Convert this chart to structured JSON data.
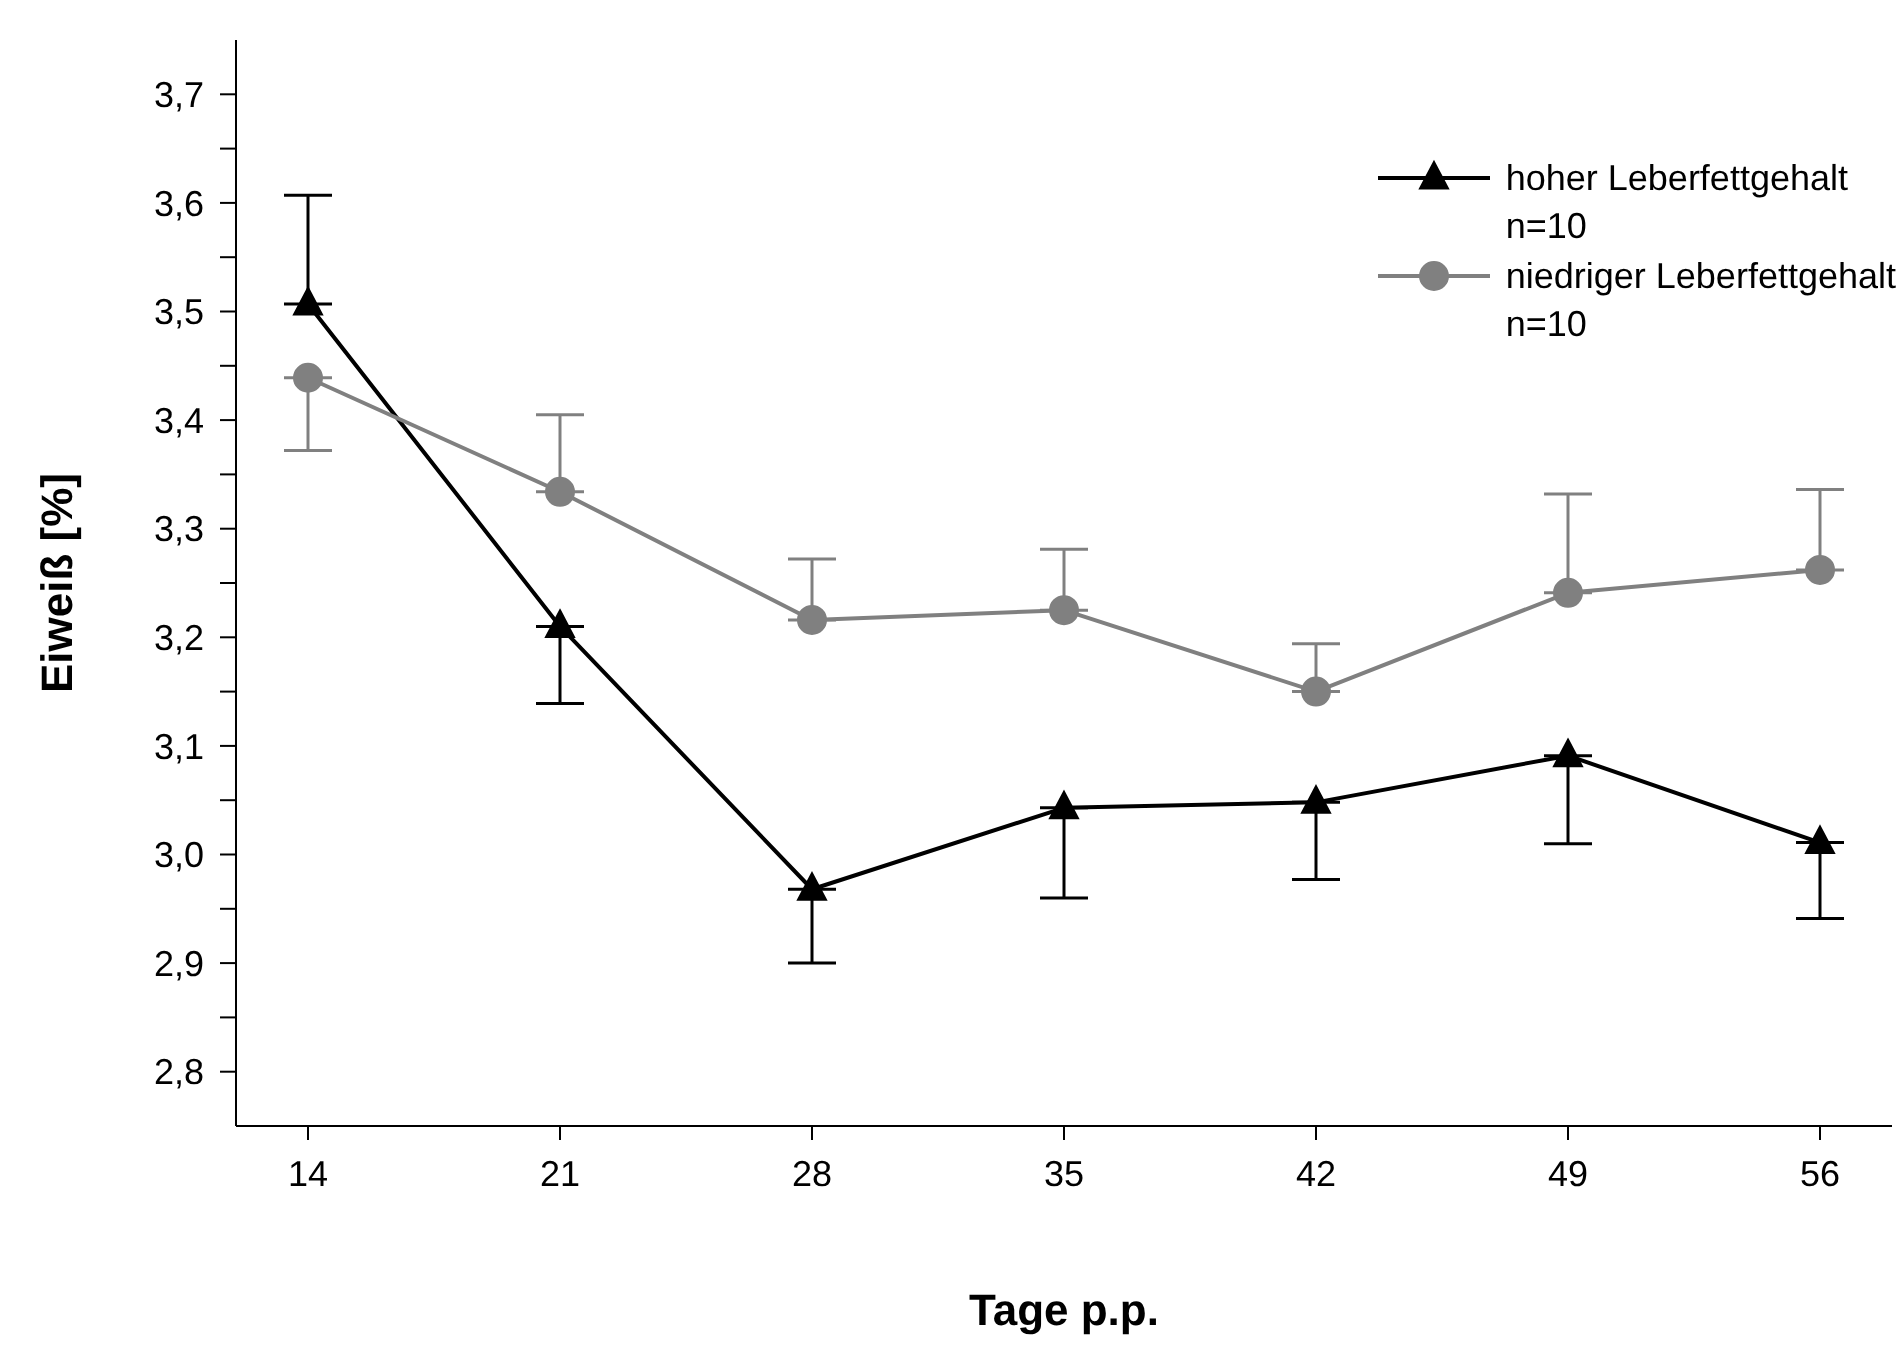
{
  "chart_data": {
    "type": "line",
    "xlabel": "Tage p.p.",
    "ylabel": "Eiweiß [%]",
    "x": [
      14,
      21,
      28,
      35,
      42,
      49,
      56
    ],
    "series": [
      {
        "name": "hoher Leberfettgehalt\nn=10",
        "color": "#000000",
        "marker": "triangle",
        "values": [
          3.507,
          3.21,
          2.968,
          3.043,
          3.048,
          3.091,
          3.011
        ],
        "errors": [
          [
            3.507,
            3.607
          ],
          [
            3.139,
            3.21
          ],
          [
            2.9,
            2.968
          ],
          [
            2.96,
            3.043
          ],
          [
            2.977,
            3.048
          ],
          [
            3.01,
            3.091
          ],
          [
            2.941,
            3.011
          ]
        ]
      },
      {
        "name": "niedriger Leberfettgehalt\nn=10",
        "color": "#808080",
        "marker": "circle",
        "values": [
          3.439,
          3.334,
          3.216,
          3.225,
          3.15,
          3.241,
          3.262
        ],
        "errors": [
          [
            3.372,
            3.439
          ],
          [
            3.334,
            3.405
          ],
          [
            3.216,
            3.272
          ],
          [
            3.225,
            3.281
          ],
          [
            3.15,
            3.194
          ],
          [
            3.241,
            3.332
          ],
          [
            3.262,
            3.336
          ]
        ]
      }
    ],
    "xlim": [
      12,
      58
    ],
    "xticks": [
      14,
      21,
      28,
      35,
      42,
      49,
      56
    ],
    "ylim": [
      2.75,
      3.75
    ],
    "yticks": [
      {
        "value": 2.8,
        "label": "2,8"
      },
      {
        "value": 2.85,
        "label": null
      },
      {
        "value": 2.9,
        "label": "2,9"
      },
      {
        "value": 2.95,
        "label": null
      },
      {
        "value": 3.0,
        "label": "3,0"
      },
      {
        "value": 3.05,
        "label": null
      },
      {
        "value": 3.1,
        "label": "3,1"
      },
      {
        "value": 3.15,
        "label": null
      },
      {
        "value": 3.2,
        "label": "3,2"
      },
      {
        "value": 3.25,
        "label": null
      },
      {
        "value": 3.3,
        "label": "3,3"
      },
      {
        "value": 3.35,
        "label": null
      },
      {
        "value": 3.4,
        "label": "3,4"
      },
      {
        "value": 3.45,
        "label": null
      },
      {
        "value": 3.5,
        "label": "3,5"
      },
      {
        "value": 3.55,
        "label": null
      },
      {
        "value": 3.6,
        "label": "3,6"
      },
      {
        "value": 3.65,
        "label": null
      },
      {
        "value": 3.7,
        "label": "3,7"
      }
    ],
    "grid": false,
    "legend": "top right",
    "line_style": "solid"
  }
}
